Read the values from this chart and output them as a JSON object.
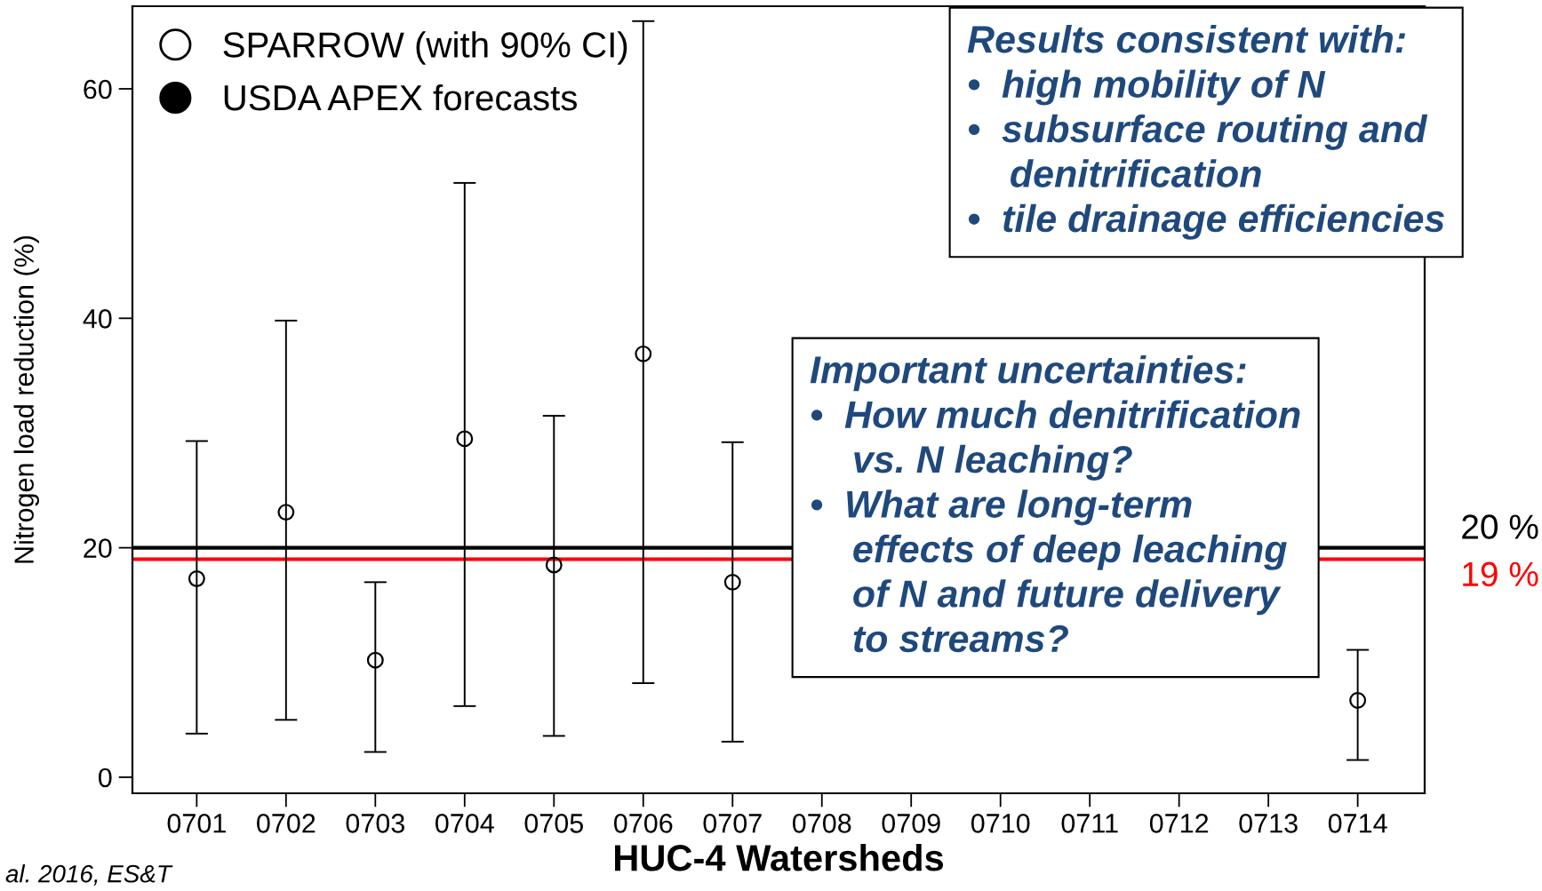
{
  "chart_data": {
    "type": "scatter",
    "xlabel": "HUC-4 Watersheds",
    "ylabel": "Nitrogen load reduction (%)",
    "categories": [
      "0701",
      "0702",
      "0703",
      "0704",
      "0705",
      "0706",
      "0707",
      "0708",
      "0709",
      "0710",
      "0711",
      "0712",
      "0713",
      "0714"
    ],
    "series": [
      {
        "name": "SPARROW (with 90% CI)",
        "color": "#000000",
        "values": [
          17.3,
          23.1,
          10.2,
          29.5,
          18.5,
          36.9,
          17.0,
          null,
          null,
          null,
          null,
          null,
          null,
          6.7
        ],
        "errors": [
          [
            3.8,
            29.3
          ],
          [
            5.0,
            39.8
          ],
          [
            2.2,
            17.0
          ],
          [
            6.2,
            51.8
          ],
          [
            3.6,
            31.5
          ],
          [
            8.2,
            65.9
          ],
          [
            3.1,
            29.2
          ],
          null,
          null,
          null,
          null,
          null,
          null,
          [
            1.5,
            11.1
          ]
        ]
      },
      {
        "name": "USDA APEX forecasts",
        "color": "#000000",
        "values": [
          null,
          null,
          null,
          null,
          null,
          null,
          null,
          null,
          null,
          null,
          null,
          null,
          null,
          null
        ]
      }
    ],
    "ylim": [
      -1.4,
      67.2
    ],
    "yticks": [
      0,
      20,
      40,
      60
    ],
    "ref_lines": [
      {
        "axis": "y",
        "value": 20,
        "label": "20 %",
        "color": "#000000"
      },
      {
        "axis": "y",
        "value": 19,
        "label": "19 %",
        "color": "#ff0000"
      }
    ],
    "annotations": [
      "Results consistent with:\n•  high mobility of N\n•  subsurface routing and\n    denitrification\n•  tile drainage efficiencies",
      "Important uncertainties:\n•  How much denitrification\n    vs. N leaching?\n•  What are long-term\n    effects of deep leaching\n    of N and future delivery\n    to streams?",
      "al. 2016, ES&T"
    ],
    "legend": "top left",
    "marker": "circle",
    "grid": false
  }
}
